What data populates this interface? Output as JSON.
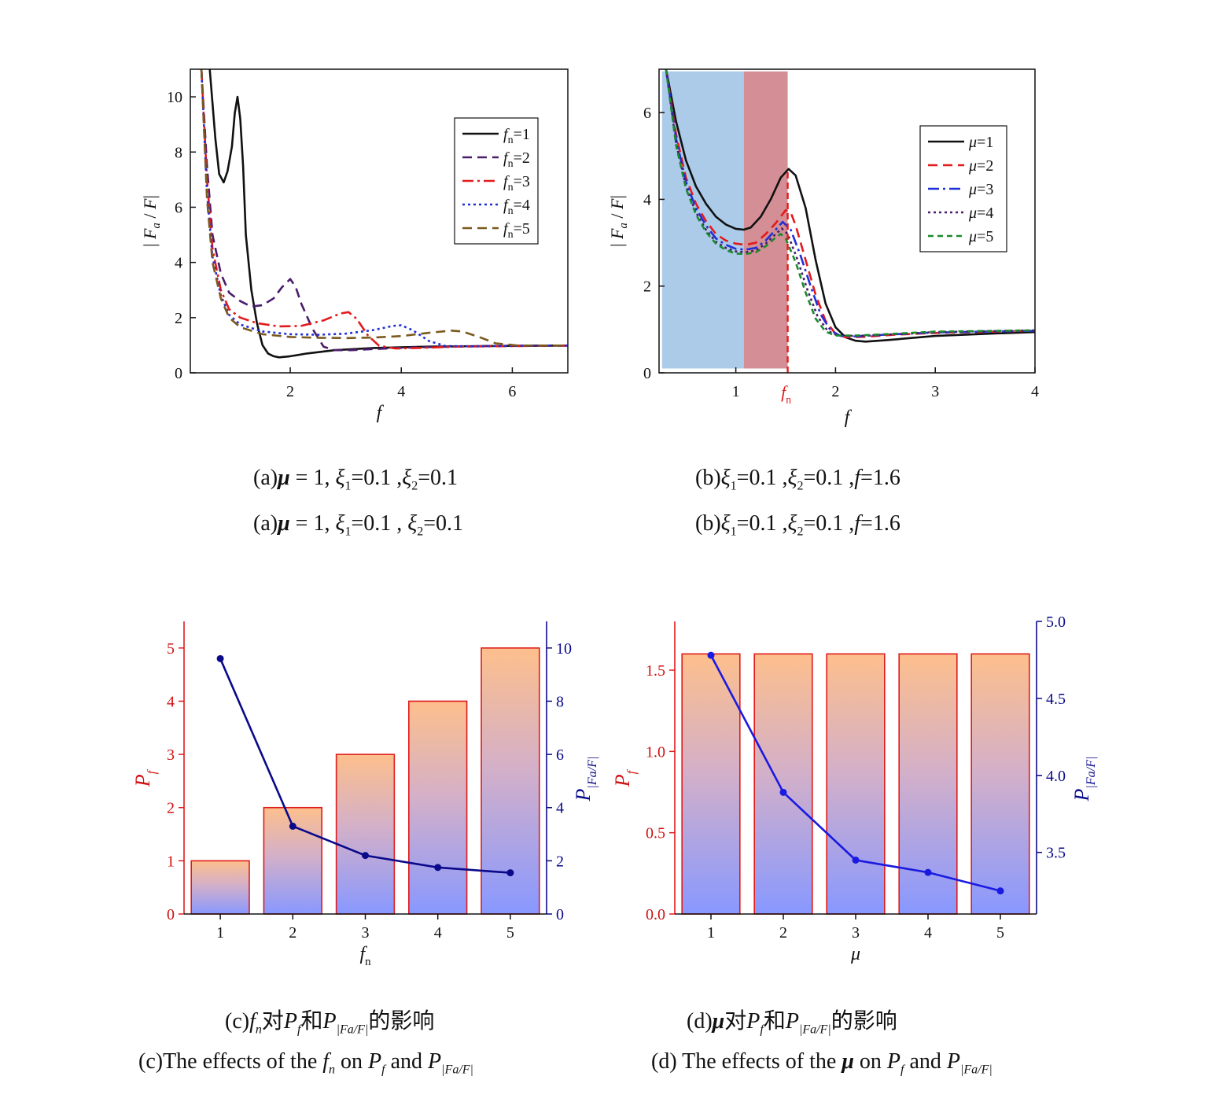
{
  "colors": {
    "black": "#111111",
    "purple": "#4b1c6b",
    "red": "#e31a1c",
    "blue": "#1f2fd6",
    "green": "#1a8a2a",
    "olive": "#7a5a1e",
    "navy": "#0a0a8a",
    "line_blue": "#1a1ae0",
    "shade_blue": "#9cc2e5",
    "shade_red": "#c8737a"
  },
  "chart_data": [
    {
      "id": "a",
      "type": "line",
      "xlabel": "f",
      "ylabel": "|Fa/F|",
      "xlim": [
        0.2,
        7
      ],
      "ylim": [
        0,
        11
      ],
      "xticks": [
        2,
        4,
        6
      ],
      "yticks": [
        0,
        2,
        4,
        6,
        8,
        10
      ],
      "legend_position": "top-right",
      "series": [
        {
          "name": "fn=1",
          "points": [
            [
              0.55,
              11
            ],
            [
              0.65,
              8.5
            ],
            [
              0.72,
              7.2
            ],
            [
              0.8,
              6.9
            ],
            [
              0.87,
              7.3
            ],
            [
              0.95,
              8.2
            ],
            [
              1.0,
              9.4
            ],
            [
              1.05,
              10.0
            ],
            [
              1.1,
              9.2
            ],
            [
              1.15,
              7.5
            ],
            [
              1.2,
              5.0
            ],
            [
              1.3,
              3.0
            ],
            [
              1.4,
              1.8
            ],
            [
              1.5,
              1.0
            ],
            [
              1.6,
              0.7
            ],
            [
              1.7,
              0.6
            ],
            [
              1.8,
              0.56
            ],
            [
              2.0,
              0.6
            ],
            [
              2.3,
              0.7
            ],
            [
              2.8,
              0.82
            ],
            [
              3.5,
              0.9
            ],
            [
              4.5,
              0.95
            ],
            [
              6,
              0.98
            ],
            [
              7,
              0.99
            ]
          ]
        },
        {
          "name": "fn=2",
          "points": [
            [
              0.4,
              11
            ],
            [
              0.5,
              7.5
            ],
            [
              0.6,
              5.0
            ],
            [
              0.75,
              3.6
            ],
            [
              0.9,
              2.9
            ],
            [
              1.1,
              2.6
            ],
            [
              1.3,
              2.4
            ],
            [
              1.5,
              2.45
            ],
            [
              1.7,
              2.7
            ],
            [
              1.85,
              3.1
            ],
            [
              2.0,
              3.4
            ],
            [
              2.1,
              3.1
            ],
            [
              2.2,
              2.5
            ],
            [
              2.4,
              1.6
            ],
            [
              2.6,
              0.95
            ],
            [
              2.8,
              0.82
            ],
            [
              3.1,
              0.82
            ],
            [
              3.5,
              0.86
            ],
            [
              4.2,
              0.92
            ],
            [
              5.5,
              0.97
            ],
            [
              7,
              0.99
            ]
          ]
        },
        {
          "name": "fn=3",
          "points": [
            [
              0.4,
              11
            ],
            [
              0.5,
              7.0
            ],
            [
              0.6,
              4.5
            ],
            [
              0.75,
              3.0
            ],
            [
              0.9,
              2.3
            ],
            [
              1.1,
              2.0
            ],
            [
              1.4,
              1.8
            ],
            [
              1.8,
              1.68
            ],
            [
              2.2,
              1.7
            ],
            [
              2.6,
              1.9
            ],
            [
              2.9,
              2.15
            ],
            [
              3.05,
              2.2
            ],
            [
              3.2,
              1.95
            ],
            [
              3.4,
              1.35
            ],
            [
              3.6,
              0.98
            ],
            [
              3.9,
              0.88
            ],
            [
              4.3,
              0.9
            ],
            [
              5,
              0.95
            ],
            [
              7,
              0.99
            ]
          ]
        },
        {
          "name": "fn=4",
          "points": [
            [
              0.4,
              11
            ],
            [
              0.5,
              6.5
            ],
            [
              0.6,
              4.2
            ],
            [
              0.75,
              2.8
            ],
            [
              0.9,
              2.1
            ],
            [
              1.1,
              1.75
            ],
            [
              1.5,
              1.5
            ],
            [
              2,
              1.4
            ],
            [
              2.5,
              1.38
            ],
            [
              3.0,
              1.42
            ],
            [
              3.5,
              1.55
            ],
            [
              3.85,
              1.7
            ],
            [
              4.0,
              1.72
            ],
            [
              4.2,
              1.55
            ],
            [
              4.5,
              1.15
            ],
            [
              4.8,
              0.97
            ],
            [
              5.3,
              0.96
            ],
            [
              6,
              0.98
            ],
            [
              7,
              0.99
            ]
          ]
        },
        {
          "name": "fn=5",
          "points": [
            [
              0.4,
              11
            ],
            [
              0.5,
              6.3
            ],
            [
              0.6,
              4.0
            ],
            [
              0.75,
              2.7
            ],
            [
              0.9,
              2.0
            ],
            [
              1.1,
              1.65
            ],
            [
              1.5,
              1.4
            ],
            [
              2,
              1.3
            ],
            [
              2.5,
              1.27
            ],
            [
              3.0,
              1.26
            ],
            [
              3.5,
              1.28
            ],
            [
              4.0,
              1.33
            ],
            [
              4.5,
              1.45
            ],
            [
              4.9,
              1.53
            ],
            [
              5.1,
              1.5
            ],
            [
              5.4,
              1.3
            ],
            [
              5.7,
              1.07
            ],
            [
              6.1,
              0.99
            ],
            [
              7,
              0.99
            ]
          ]
        }
      ]
    },
    {
      "id": "b",
      "type": "line",
      "xlabel": "f",
      "ylabel": "|Fa/F|",
      "xlim": [
        0.23,
        4
      ],
      "ylim": [
        0,
        7
      ],
      "xticks": [
        1,
        2,
        3,
        4
      ],
      "yticks": [
        0,
        2,
        4,
        6
      ],
      "special_xtick": {
        "label": "fn",
        "x": 1.52
      },
      "legend_position": "top-right",
      "shaded_regions": [
        {
          "x0": 0.26,
          "x1": 1.08,
          "y0": 0.1,
          "y1": 6.95,
          "color": "blue"
        },
        {
          "x0": 1.08,
          "x1": 1.52,
          "y0": 0.1,
          "y1": 6.95,
          "color": "red"
        }
      ],
      "series": [
        {
          "name": "μ=1",
          "points": [
            [
              0.3,
              7.0
            ],
            [
              0.4,
              5.8
            ],
            [
              0.5,
              4.9
            ],
            [
              0.6,
              4.3
            ],
            [
              0.7,
              3.9
            ],
            [
              0.8,
              3.6
            ],
            [
              0.9,
              3.42
            ],
            [
              1.0,
              3.32
            ],
            [
              1.08,
              3.3
            ],
            [
              1.15,
              3.35
            ],
            [
              1.25,
              3.6
            ],
            [
              1.35,
              4.0
            ],
            [
              1.45,
              4.5
            ],
            [
              1.53,
              4.7
            ],
            [
              1.6,
              4.55
            ],
            [
              1.7,
              3.8
            ],
            [
              1.8,
              2.6
            ],
            [
              1.9,
              1.6
            ],
            [
              2.0,
              1.05
            ],
            [
              2.1,
              0.82
            ],
            [
              2.2,
              0.74
            ],
            [
              2.3,
              0.72
            ],
            [
              2.5,
              0.75
            ],
            [
              3.0,
              0.85
            ],
            [
              3.5,
              0.9
            ],
            [
              4.0,
              0.94
            ]
          ]
        },
        {
          "name": "μ=2",
          "points": [
            [
              0.3,
              7.0
            ],
            [
              0.4,
              5.5
            ],
            [
              0.5,
              4.5
            ],
            [
              0.6,
              3.9
            ],
            [
              0.7,
              3.5
            ],
            [
              0.8,
              3.2
            ],
            [
              0.9,
              3.05
            ],
            [
              1.0,
              2.98
            ],
            [
              1.1,
              2.95
            ],
            [
              1.2,
              3.0
            ],
            [
              1.3,
              3.2
            ],
            [
              1.4,
              3.45
            ],
            [
              1.5,
              3.75
            ],
            [
              1.55,
              3.7
            ],
            [
              1.6,
              3.4
            ],
            [
              1.7,
              2.6
            ],
            [
              1.8,
              1.8
            ],
            [
              1.9,
              1.2
            ],
            [
              2.0,
              0.9
            ],
            [
              2.1,
              0.82
            ],
            [
              2.3,
              0.83
            ],
            [
              2.6,
              0.88
            ],
            [
              3.0,
              0.92
            ],
            [
              4.0,
              0.97
            ]
          ]
        },
        {
          "name": "μ=3",
          "points": [
            [
              0.3,
              7.0
            ],
            [
              0.4,
              5.4
            ],
            [
              0.5,
              4.4
            ],
            [
              0.6,
              3.8
            ],
            [
              0.7,
              3.4
            ],
            [
              0.8,
              3.1
            ],
            [
              0.9,
              2.95
            ],
            [
              1.0,
              2.86
            ],
            [
              1.1,
              2.84
            ],
            [
              1.2,
              2.88
            ],
            [
              1.3,
              3.05
            ],
            [
              1.4,
              3.3
            ],
            [
              1.47,
              3.48
            ],
            [
              1.55,
              3.3
            ],
            [
              1.65,
              2.7
            ],
            [
              1.75,
              2.0
            ],
            [
              1.85,
              1.35
            ],
            [
              1.95,
              0.98
            ],
            [
              2.05,
              0.85
            ],
            [
              2.2,
              0.84
            ],
            [
              2.5,
              0.88
            ],
            [
              3.0,
              0.93
            ],
            [
              4.0,
              0.97
            ]
          ]
        },
        {
          "name": "μ=4",
          "points": [
            [
              0.3,
              7.0
            ],
            [
              0.4,
              5.3
            ],
            [
              0.5,
              4.3
            ],
            [
              0.6,
              3.7
            ],
            [
              0.7,
              3.3
            ],
            [
              0.8,
              3.02
            ],
            [
              0.9,
              2.88
            ],
            [
              1.0,
              2.8
            ],
            [
              1.1,
              2.78
            ],
            [
              1.2,
              2.82
            ],
            [
              1.3,
              2.98
            ],
            [
              1.4,
              3.2
            ],
            [
              1.46,
              3.33
            ],
            [
              1.52,
              3.2
            ],
            [
              1.62,
              2.6
            ],
            [
              1.72,
              1.9
            ],
            [
              1.82,
              1.3
            ],
            [
              1.92,
              0.97
            ],
            [
              2.02,
              0.86
            ],
            [
              2.2,
              0.85
            ],
            [
              2.5,
              0.88
            ],
            [
              3.0,
              0.94
            ],
            [
              4.0,
              0.98
            ]
          ]
        },
        {
          "name": "μ=5",
          "points": [
            [
              0.3,
              7.0
            ],
            [
              0.4,
              5.25
            ],
            [
              0.5,
              4.25
            ],
            [
              0.6,
              3.65
            ],
            [
              0.7,
              3.25
            ],
            [
              0.8,
              2.98
            ],
            [
              0.9,
              2.83
            ],
            [
              1.0,
              2.75
            ],
            [
              1.1,
              2.74
            ],
            [
              1.2,
              2.78
            ],
            [
              1.3,
              2.92
            ],
            [
              1.4,
              3.12
            ],
            [
              1.45,
              3.2
            ],
            [
              1.5,
              3.1
            ],
            [
              1.6,
              2.55
            ],
            [
              1.7,
              1.85
            ],
            [
              1.8,
              1.25
            ],
            [
              1.9,
              0.95
            ],
            [
              2.0,
              0.86
            ],
            [
              2.2,
              0.86
            ],
            [
              2.5,
              0.89
            ],
            [
              3.0,
              0.95
            ],
            [
              4.0,
              0.98
            ]
          ]
        }
      ]
    },
    {
      "id": "c",
      "type": "bar",
      "xlabel": "fn",
      "ylabel": "Pf",
      "ylabel_right": "P|Fa/F|",
      "categories": [
        "1",
        "2",
        "3",
        "4",
        "5"
      ],
      "ylim": [
        0,
        5.5
      ],
      "yticks": [
        0,
        1,
        2,
        3,
        4,
        5
      ],
      "ylim_right": [
        0,
        11
      ],
      "yticks_right": [
        0,
        2,
        4,
        6,
        8,
        10
      ],
      "bar_values": [
        1,
        2,
        3,
        4,
        5
      ],
      "line_values": [
        9.6,
        3.3,
        2.2,
        1.75,
        1.55
      ]
    },
    {
      "id": "d",
      "type": "bar",
      "xlabel": "μ",
      "ylabel": "Pf",
      "ylabel_right": "P|Fa/F|",
      "categories": [
        "1",
        "2",
        "3",
        "4",
        "5"
      ],
      "ylim": [
        0,
        1.8
      ],
      "yticks": [
        "0.0",
        "0.5",
        "1.0",
        "1.5"
      ],
      "ylim_right": [
        3.1,
        5.0
      ],
      "yticks_right": [
        "3.5",
        "4.0",
        "4.5",
        "5.0"
      ],
      "bar_values": [
        1.6,
        1.6,
        1.6,
        1.6,
        1.6
      ],
      "line_values": [
        4.78,
        3.89,
        3.45,
        3.37,
        3.25
      ]
    }
  ],
  "captions": {
    "a1": {
      "pre": "(a)",
      "mu": "μ",
      "rest": " = 1, ",
      "xi": "ξ",
      "s1": "1",
      "m1": "=0.1 ,",
      "xi2": "ξ",
      "s2": "2",
      "end": "=0.1"
    },
    "a2": {
      "pre": "(a)",
      "mu": "μ",
      "rest": " = 1, ",
      "xi": "ξ",
      "s1": "1",
      "m1": "=0.1 , ",
      "xi2": "ξ",
      "s2": "2",
      "end": "=0.1"
    },
    "b1": {
      "pre": "(b)",
      "xi": "ξ",
      "s1": "1",
      "m1": "=0.1 ,",
      "xi2": "ξ",
      "s2": "2",
      "m2": "=0.1 ,",
      "f": "f",
      "end": "=1.6"
    },
    "b2": {
      "pre": "(b)",
      "xi": "ξ",
      "s1": "1",
      "m1": "=0.1 ,",
      "xi2": "ξ",
      "s2": "2",
      "m2": "=0.1 ,",
      "f": "f",
      "end": "=1.6"
    },
    "c1": {
      "pre": "(c)",
      "v": "f",
      "vs": "n",
      "t1": "对",
      "p": "P",
      "ps": "f",
      "t2": "和",
      "p2": "P",
      "p2s": "|Fa/F|",
      "t3": "的影响"
    },
    "c2": {
      "pre": "(c)The effects of the ",
      "v": "f",
      "vs": "n",
      "t1": " on ",
      "p": "P",
      "ps": "f",
      "t2": " and ",
      "p2": "P",
      "p2s": "|Fa/F|"
    },
    "d1": {
      "pre": "(d)",
      "v": "μ",
      "t1": "对",
      "p": "P",
      "ps": "f",
      "t2": "和",
      "p2": "P",
      "p2s": "|Fa/F|",
      "t3": "的影响"
    },
    "d2": {
      "pre": "(d) The effects of the ",
      "v": "μ",
      "t1": " on ",
      "p": "P",
      "ps": "f",
      "t2": " and ",
      "p2": "P",
      "p2s": "|Fa/F|"
    }
  }
}
